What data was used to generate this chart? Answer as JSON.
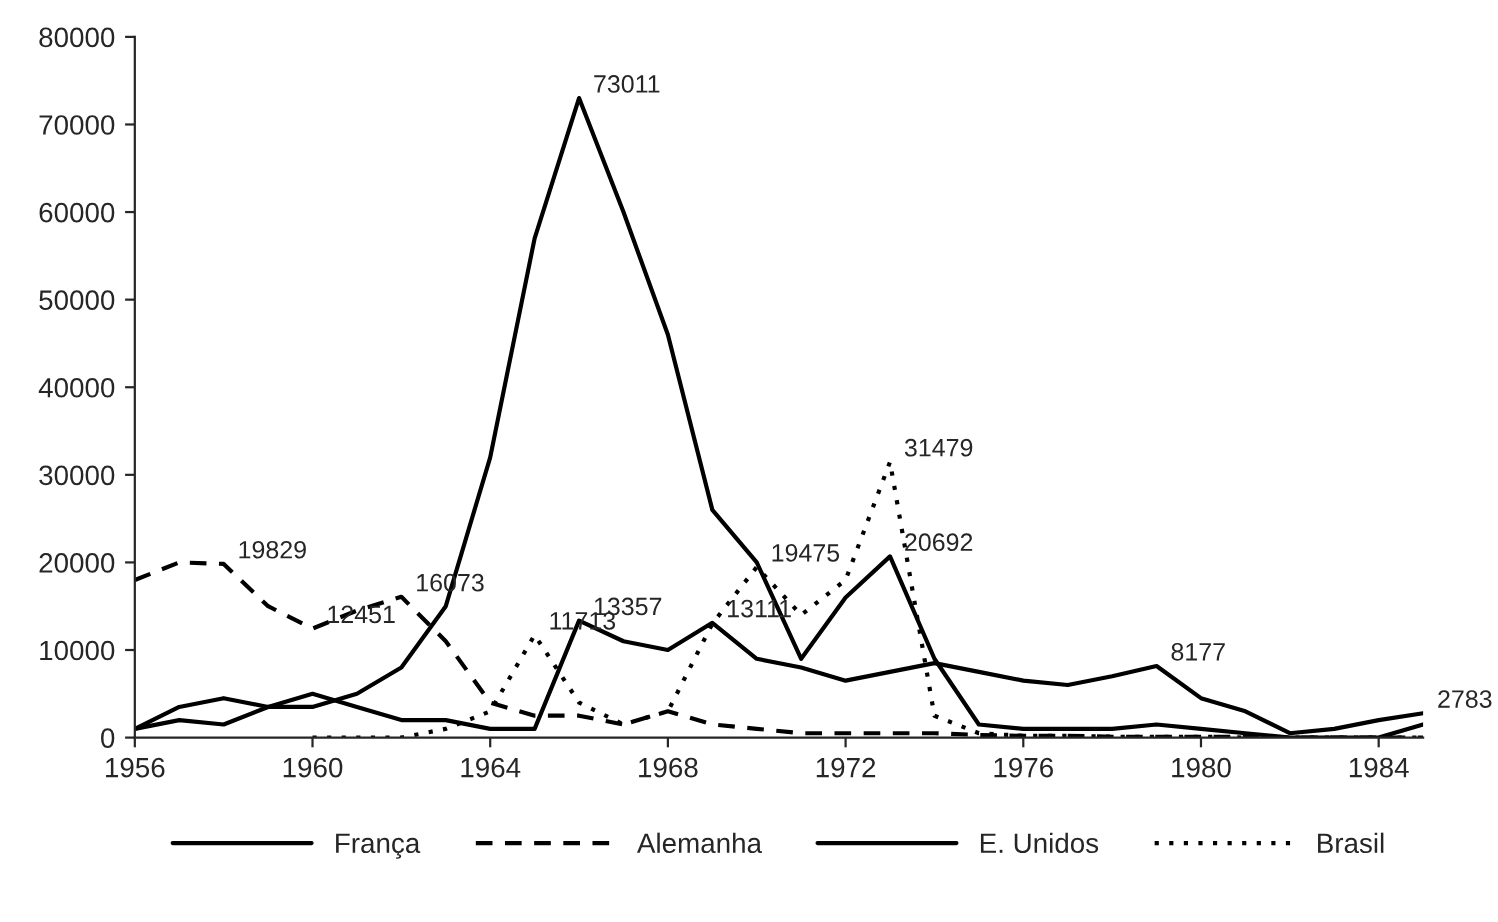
{
  "chart_data": {
    "type": "line",
    "x": [
      1956,
      1957,
      1958,
      1959,
      1960,
      1961,
      1962,
      1963,
      1964,
      1965,
      1966,
      1967,
      1968,
      1969,
      1970,
      1971,
      1972,
      1973,
      1974,
      1975,
      1976,
      1977,
      1978,
      1979,
      1980,
      1981,
      1982,
      1983,
      1984,
      1985
    ],
    "series": [
      {
        "name": "França",
        "color": "#000000",
        "line_style": "solid",
        "values": [
          1000,
          2000,
          1500,
          3500,
          3500,
          5000,
          8000,
          15000,
          32000,
          57000,
          73011,
          60000,
          46000,
          26000,
          20000,
          9000,
          16000,
          20692,
          9000,
          1500,
          1000,
          1000,
          1000,
          1500,
          1000,
          500,
          0,
          0,
          0,
          1500
        ],
        "value_labels": [
          null,
          null,
          null,
          null,
          null,
          null,
          null,
          null,
          null,
          null,
          "73011",
          null,
          null,
          null,
          null,
          null,
          null,
          "20692",
          null,
          null,
          null,
          null,
          null,
          null,
          null,
          null,
          null,
          null,
          null,
          null
        ]
      },
      {
        "name": "Alemanha",
        "color": "#000000",
        "line_style": "dashed",
        "values": [
          18000,
          20000,
          19829,
          15000,
          12451,
          14500,
          16073,
          11000,
          4000,
          2500,
          2500,
          1500,
          3000,
          1500,
          1000,
          500,
          500,
          500,
          500,
          300,
          200,
          200,
          100,
          100,
          100,
          100,
          0,
          0,
          0,
          0
        ],
        "value_labels": [
          null,
          null,
          "19829",
          null,
          "12451",
          null,
          "16073",
          null,
          null,
          null,
          null,
          null,
          null,
          null,
          null,
          null,
          null,
          null,
          null,
          null,
          null,
          null,
          null,
          null,
          null,
          null,
          null,
          null,
          null,
          null
        ]
      },
      {
        "name": "E. Unidos",
        "color": "#000000",
        "line_style": "solid",
        "values": [
          1000,
          3500,
          4500,
          3500,
          5000,
          3500,
          2000,
          2000,
          1000,
          1000,
          13357,
          11000,
          10000,
          13111,
          9000,
          8000,
          6500,
          7500,
          8500,
          7500,
          6500,
          6000,
          7000,
          8177,
          4500,
          3000,
          500,
          1000,
          2000,
          2783
        ],
        "value_labels": [
          null,
          null,
          null,
          null,
          null,
          null,
          null,
          null,
          null,
          null,
          "13357",
          null,
          null,
          "13111",
          null,
          null,
          null,
          null,
          null,
          null,
          null,
          null,
          null,
          "8177",
          null,
          null,
          null,
          null,
          null,
          "2783"
        ]
      },
      {
        "name": "Brasil",
        "color": "#000000",
        "line_style": "dotted",
        "values": [
          null,
          null,
          null,
          null,
          0,
          0,
          0,
          1000,
          3000,
          11713,
          4000,
          1500,
          3000,
          13000,
          19475,
          14000,
          18000,
          31479,
          2500,
          500,
          200,
          200,
          100,
          100,
          100,
          0,
          0,
          0,
          0,
          0
        ],
        "value_labels": [
          null,
          null,
          null,
          null,
          null,
          null,
          null,
          null,
          null,
          "11713",
          null,
          null,
          null,
          null,
          "19475",
          null,
          null,
          "31479",
          null,
          null,
          null,
          null,
          null,
          null,
          null,
          null,
          null,
          null,
          null,
          null
        ]
      }
    ],
    "xlim": [
      1956,
      1985
    ],
    "xticks": [
      1956,
      1960,
      1964,
      1968,
      1972,
      1976,
      1980,
      1984
    ],
    "ylim": [
      0,
      80000
    ],
    "yticks": [
      0,
      10000,
      20000,
      30000,
      40000,
      50000,
      60000,
      70000,
      80000
    ],
    "grid": false,
    "legend": "bottom"
  }
}
